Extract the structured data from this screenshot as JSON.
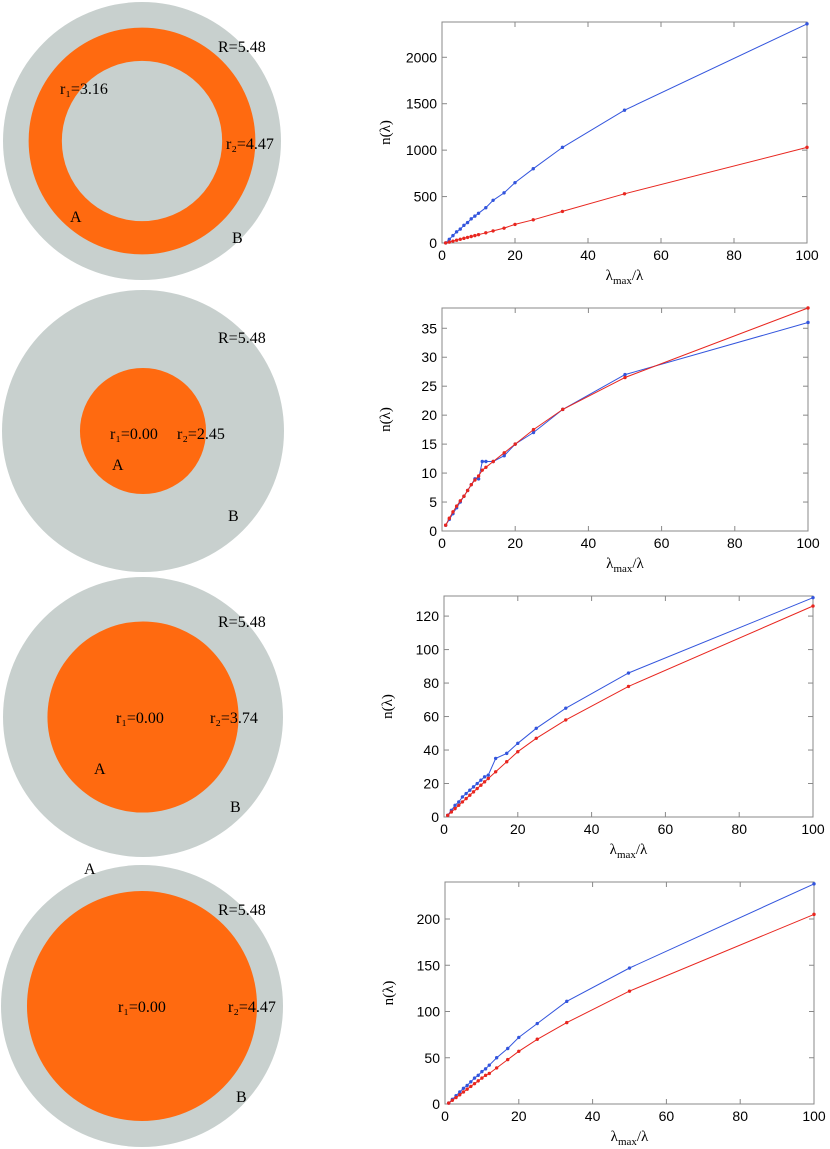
{
  "colors": {
    "annulus_outer": "#c8d0ce",
    "region_A": "#ff6a10",
    "series_blue": "#3355dd",
    "series_red": "#e8261f",
    "axis": "#888888"
  },
  "panels": [
    {
      "diagram": {
        "R": 5.48,
        "r1": 3.16,
        "r2": 4.47,
        "R_label": "R=5.48",
        "r1_label": "r₁=3.16",
        "r2_label": "r₂=4.47",
        "A_label": "A",
        "B_label": "B"
      },
      "chart": {
        "type": "line",
        "ylim": [
          0,
          2380
        ],
        "yticks": [
          0,
          500,
          1000,
          1500,
          2000
        ],
        "xlim": [
          0,
          100
        ],
        "xticks": [
          0,
          20,
          40,
          60,
          80,
          100
        ],
        "ylabel": "n(λ)",
        "xlabel": "λmax/λ",
        "series": [
          {
            "name": "blue",
            "x": [
              1,
              2,
              3,
              4,
              5,
              6,
              7,
              8,
              9,
              10,
              12,
              14,
              17,
              20,
              25,
              33,
              50,
              100
            ],
            "y": [
              1,
              40,
              80,
              120,
              150,
              190,
              220,
              260,
              290,
              320,
              380,
              460,
              540,
              650,
              800,
              1030,
              1430,
              2360
            ]
          },
          {
            "name": "red",
            "x": [
              1,
              2,
              3,
              4,
              5,
              6,
              7,
              8,
              9,
              10,
              12,
              14,
              17,
              20,
              25,
              33,
              50,
              100
            ],
            "y": [
              1,
              10,
              20,
              30,
              40,
              50,
              60,
              70,
              80,
              90,
              110,
              130,
              160,
              200,
              250,
              340,
              530,
              1030
            ]
          }
        ]
      }
    },
    {
      "diagram": {
        "R": 5.48,
        "r1": 0.0,
        "r2": 2.45,
        "R_label": "R=5.48",
        "r1_label": "r₁=0.00",
        "r2_label": "r₂=2.45",
        "A_label": "A",
        "B_label": "B"
      },
      "chart": {
        "type": "line",
        "ylim": [
          0,
          38.5
        ],
        "yticks": [
          0,
          5,
          10,
          15,
          20,
          25,
          30,
          35
        ],
        "xlim": [
          0,
          100
        ],
        "xticks": [
          0,
          20,
          40,
          60,
          80,
          100
        ],
        "ylabel": "n(λ)",
        "xlabel": "λmax/λ",
        "series": [
          {
            "name": "blue",
            "x": [
              1,
              2,
              3,
              4,
              5,
              6,
              7,
              8,
              9,
              10,
              11,
              12,
              14,
              17,
              20,
              25,
              33,
              50,
              100
            ],
            "y": [
              1,
              2,
              3,
              4,
              5,
              6,
              7,
              8,
              9,
              9,
              12,
              12,
              12,
              13,
              15,
              17,
              21,
              27,
              36
            ]
          },
          {
            "name": "red",
            "x": [
              1,
              2,
              3,
              4,
              5,
              6,
              7,
              8,
              9,
              10,
              11,
              12,
              14,
              17,
              20,
              25,
              33,
              50,
              100
            ],
            "y": [
              1,
              2.2,
              3.3,
              4.3,
              5.2,
              6,
              7,
              8,
              8.8,
              9.5,
              10.5,
              11,
              12,
              13.5,
              15,
              17.5,
              21,
              26.5,
              38.5
            ]
          }
        ]
      }
    },
    {
      "diagram": {
        "R": 5.48,
        "r1": 0.0,
        "r2": 3.74,
        "R_label": "R=5.48",
        "r1_label": "r₁=0.00",
        "r2_label": "r₂=3.74",
        "A_label": "A",
        "B_label": "B"
      },
      "chart": {
        "type": "line",
        "ylim": [
          0,
          132
        ],
        "yticks": [
          0,
          20,
          40,
          60,
          80,
          100,
          120
        ],
        "xlim": [
          0,
          100
        ],
        "xticks": [
          0,
          20,
          40,
          60,
          80,
          100
        ],
        "ylabel": "n(λ)",
        "xlabel": "λmax/λ",
        "series": [
          {
            "name": "blue",
            "x": [
              1,
              2,
              3,
              4,
              5,
              6,
              7,
              8,
              9,
              10,
              11,
              12,
              14,
              17,
              20,
              25,
              33,
              50,
              100
            ],
            "y": [
              1,
              4,
              7,
              9,
              12,
              14,
              16,
              18,
              20,
              22,
              24,
              25,
              35,
              38,
              44,
              53,
              65,
              86,
              131
            ]
          },
          {
            "name": "red",
            "x": [
              1,
              2,
              3,
              4,
              5,
              6,
              7,
              8,
              9,
              10,
              11,
              12,
              14,
              17,
              20,
              25,
              33,
              50,
              100
            ],
            "y": [
              1,
              3,
              5,
              7,
              9,
              11,
              13,
              15,
              17,
              19,
              21,
              23,
              27,
              33,
              39,
              47,
              58,
              78,
              126
            ]
          }
        ]
      }
    },
    {
      "diagram": {
        "R": 5.48,
        "r1": 0.0,
        "r2": 4.47,
        "R_label": "R=5.48",
        "r1_label": "r₁=0.00",
        "r2_label": "r₂=4.47",
        "A_label": "A",
        "B_label": "B"
      },
      "chart": {
        "type": "line",
        "ylim": [
          0,
          240
        ],
        "yticks": [
          0,
          50,
          100,
          150,
          200
        ],
        "xlim": [
          0,
          100
        ],
        "xticks": [
          0,
          20,
          40,
          60,
          80,
          100
        ],
        "ylabel": "n(λ)",
        "xlabel": "λmax/λ",
        "series": [
          {
            "name": "blue",
            "x": [
              1,
              2,
              3,
              4,
              5,
              6,
              7,
              8,
              9,
              10,
              11,
              12,
              14,
              17,
              20,
              25,
              33,
              50,
              100
            ],
            "y": [
              1,
              5,
              9,
              13,
              17,
              20,
              24,
              28,
              31,
              35,
              38,
              42,
              50,
              60,
              72,
              87,
              111,
              147,
              238
            ]
          },
          {
            "name": "red",
            "x": [
              1,
              2,
              3,
              4,
              5,
              6,
              7,
              8,
              9,
              10,
              11,
              12,
              14,
              17,
              20,
              25,
              33,
              50,
              100
            ],
            "y": [
              1,
              4,
              7,
              10,
              13,
              16,
              19,
              22,
              25,
              28,
              31,
              33,
              39,
              48,
              57,
              70,
              88,
              122,
              205
            ]
          }
        ]
      }
    }
  ]
}
